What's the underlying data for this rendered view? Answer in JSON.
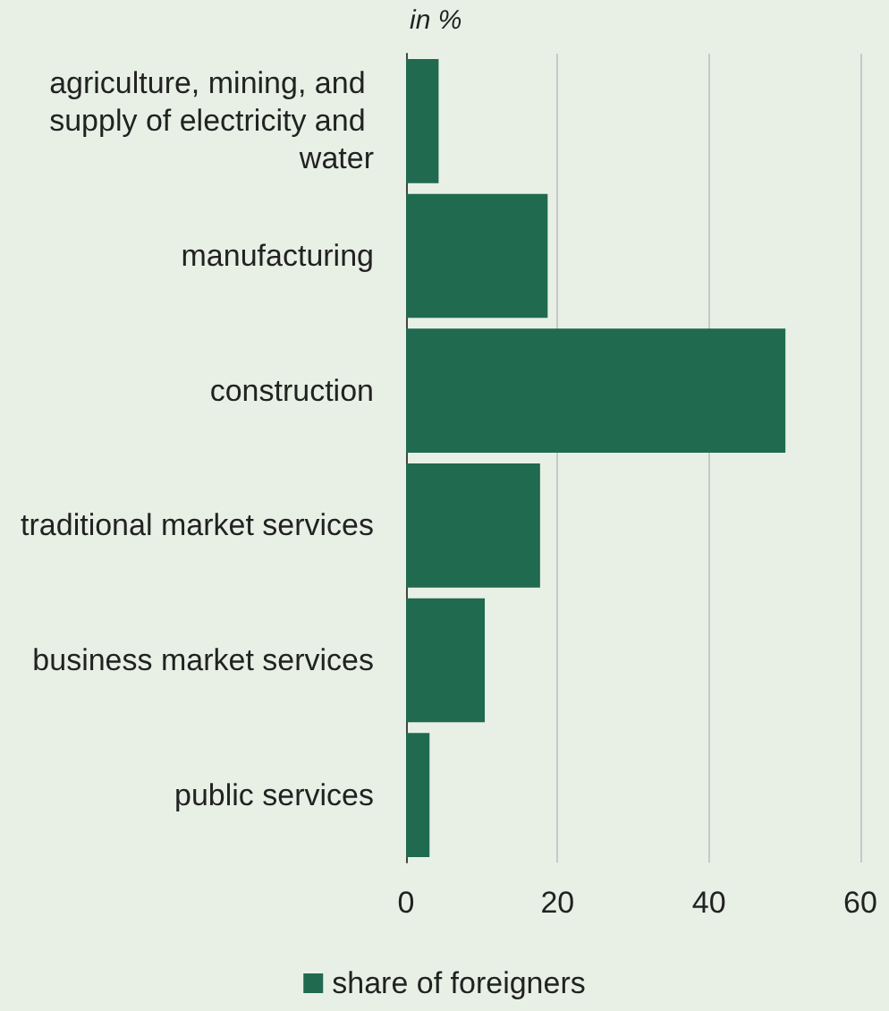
{
  "chart_data": {
    "type": "bar",
    "orientation": "horizontal",
    "xlabel": "in %",
    "categories": [
      "agriculture, mining, and supply of electricity and water",
      "manufacturing",
      "construction",
      "traditional market services",
      "business market services",
      "public services"
    ],
    "series": [
      {
        "name": "share of foreigners",
        "color": "#206a50",
        "values": [
          4.3,
          18.7,
          50.1,
          17.7,
          10.4,
          3.1
        ]
      }
    ],
    "xlim": [
      0,
      60
    ],
    "xticks": [
      0,
      20,
      40,
      60
    ],
    "grid": "x",
    "legend": "bottom"
  }
}
